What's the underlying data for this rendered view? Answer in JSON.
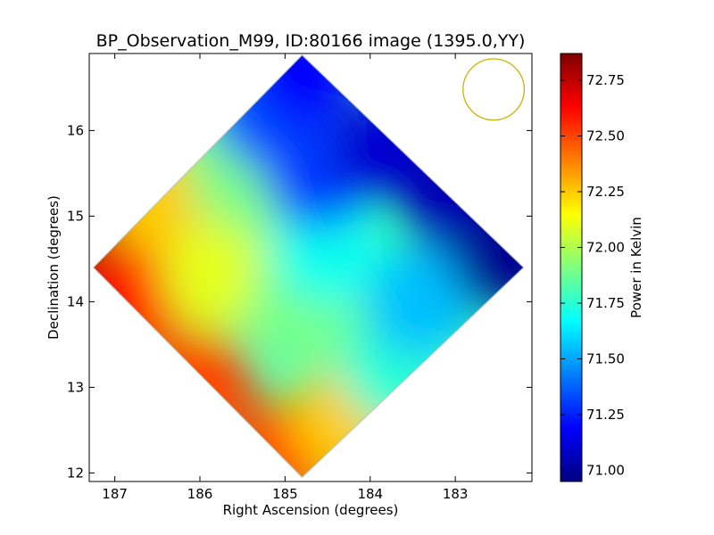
{
  "chart_data": {
    "type": "heatmap",
    "title": "BP_Observation_M99, ID:80166 image (1395.0,YY)",
    "xlabel": "Right Ascension (degrees)",
    "ylabel": "Declination (degrees)",
    "colorbar_label": "Power in Kelvin",
    "xlim": [
      187.3,
      182.1
    ],
    "ylim": [
      11.9,
      16.9
    ],
    "x_ticks": [
      187,
      186,
      185,
      184,
      183
    ],
    "y_ticks": [
      12,
      13,
      14,
      15,
      16
    ],
    "colorbar_range": [
      70.95,
      72.87
    ],
    "colorbar_ticks": [
      "71.00",
      "71.25",
      "71.50",
      "71.75",
      "72.00",
      "72.25",
      "72.50",
      "72.75"
    ],
    "colormap": "jet",
    "colors": {
      "jet": [
        "#00007f",
        "#0000ff",
        "#007fff",
        "#00ffff",
        "#7fff7f",
        "#ffff00",
        "#ff7f00",
        "#ff0000",
        "#7f0000"
      ],
      "beam_circle": "#c8b400"
    },
    "map_footprint": [
      [
        187.25,
        14.4
      ],
      [
        184.8,
        16.88
      ],
      [
        182.2,
        14.4
      ],
      [
        184.8,
        11.95
      ]
    ],
    "beam_circle": {
      "ra_center": 182.55,
      "dec_center": 16.48,
      "radius_deg": 0.36
    },
    "value_samples": [
      {
        "ra": 187.2,
        "dec": 14.5,
        "value": 72.8
      },
      {
        "ra": 186.8,
        "dec": 14.0,
        "value": 72.6
      },
      {
        "ra": 186.0,
        "dec": 13.0,
        "value": 72.5
      },
      {
        "ra": 185.0,
        "dec": 12.2,
        "value": 72.5
      },
      {
        "ra": 184.3,
        "dec": 12.6,
        "value": 72.25
      },
      {
        "ra": 186.5,
        "dec": 15.2,
        "value": 72.25
      },
      {
        "ra": 185.8,
        "dec": 14.3,
        "value": 72.1
      },
      {
        "ra": 185.5,
        "dec": 15.5,
        "value": 71.9
      },
      {
        "ra": 184.8,
        "dec": 14.0,
        "value": 71.9
      },
      {
        "ra": 183.7,
        "dec": 13.2,
        "value": 71.75
      },
      {
        "ra": 183.4,
        "dec": 14.0,
        "value": 71.55
      },
      {
        "ra": 184.5,
        "dec": 14.6,
        "value": 71.7
      },
      {
        "ra": 185.2,
        "dec": 16.2,
        "value": 71.35
      },
      {
        "ra": 184.6,
        "dec": 15.5,
        "value": 71.3
      },
      {
        "ra": 184.8,
        "dec": 16.7,
        "value": 71.2
      },
      {
        "ra": 183.8,
        "dec": 15.8,
        "value": 71.1
      },
      {
        "ra": 183.0,
        "dec": 15.2,
        "value": 71.05
      },
      {
        "ra": 182.4,
        "dec": 14.5,
        "value": 70.98
      }
    ]
  }
}
